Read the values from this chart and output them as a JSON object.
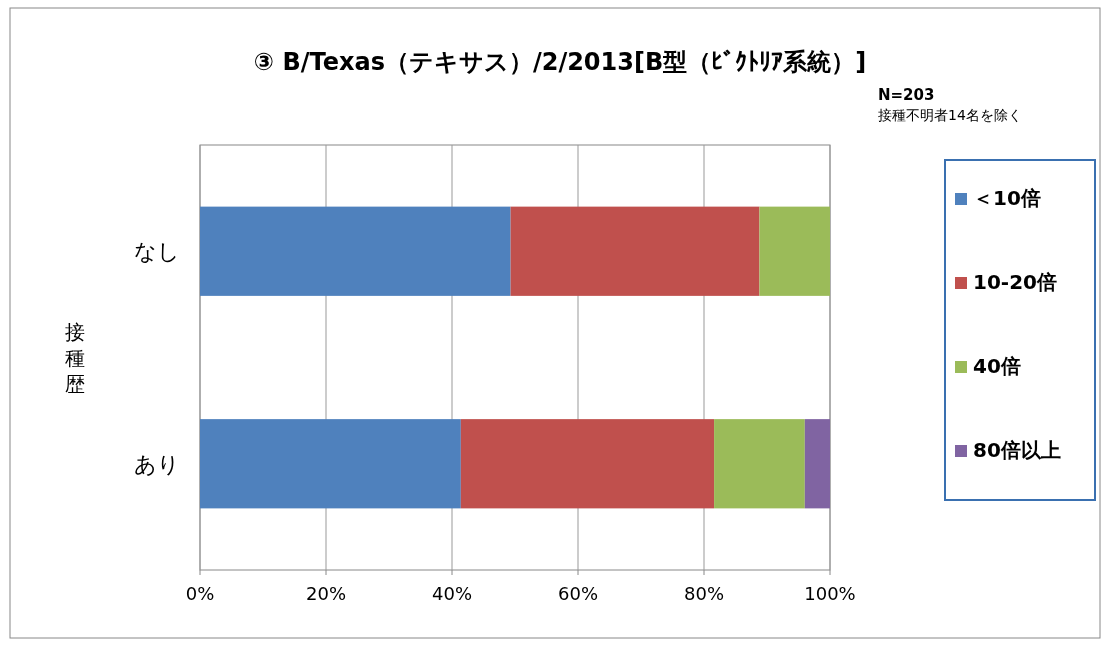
{
  "chart_data": {
    "type": "bar",
    "orientation": "horizontal",
    "stacked": true,
    "title": "③ B/Texas（テキサス）/2/2013[B型（ﾋﾞｸﾄﾘｱ系統）]",
    "ylabel": "接種歴",
    "annotations": [
      "N=203",
      "接種不明者14名を除く"
    ],
    "categories": [
      "なし",
      "あり"
    ],
    "series": [
      {
        "name": "＜10倍",
        "color": "#4f81bd",
        "values": [
          49.3,
          41.4
        ]
      },
      {
        "name": "10-20倍",
        "color": "#c0504d",
        "values": [
          39.5,
          40.2
        ]
      },
      {
        "name": "40倍",
        "color": "#9bbb59",
        "values": [
          11.2,
          14.4
        ]
      },
      {
        "name": "80倍以上",
        "color": "#8064a2",
        "values": [
          0,
          4.0
        ]
      }
    ],
    "xlim": [
      0,
      100
    ],
    "xticks": [
      {
        "value": 0,
        "label": "0%"
      },
      {
        "value": 20,
        "label": "20%"
      },
      {
        "value": 40,
        "label": "40%"
      },
      {
        "value": 60,
        "label": "60%"
      },
      {
        "value": 80,
        "label": "80%"
      },
      {
        "value": 100,
        "label": "100%"
      }
    ],
    "grid": "x",
    "legend": "right"
  }
}
